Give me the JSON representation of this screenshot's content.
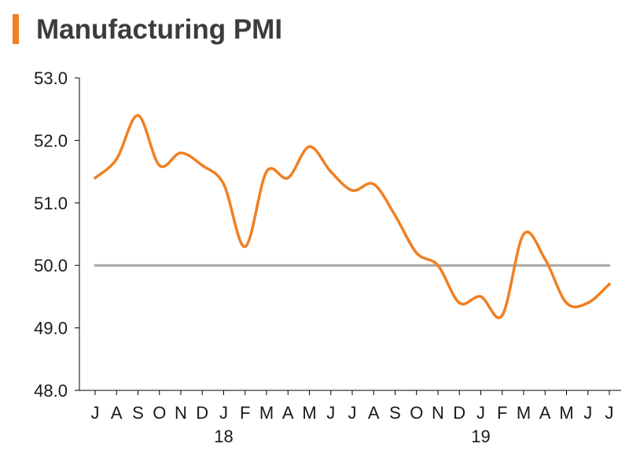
{
  "colors": {
    "accent": "#F07F22",
    "series": "#F07F22",
    "reference": "#A6A6A6",
    "axis": "#000000",
    "title_text": "#3C3C3C"
  },
  "chart_data": {
    "type": "line",
    "title": "Manufacturing PMI",
    "xlabel": "",
    "ylabel": "",
    "ylim": [
      48.0,
      53.0
    ],
    "yticks": [
      "53.0",
      "52.0",
      "51.0",
      "50.0",
      "49.0",
      "48.0"
    ],
    "reference_line": 50.0,
    "grid": false,
    "categories": [
      "J",
      "A",
      "S",
      "O",
      "N",
      "D",
      "J",
      "F",
      "M",
      "A",
      "M",
      "J",
      "J",
      "A",
      "S",
      "O",
      "N",
      "D",
      "J",
      "F",
      "M",
      "A",
      "M",
      "J",
      "J"
    ],
    "year_labels": [
      {
        "label": "18",
        "index": 6
      },
      {
        "label": "19",
        "index": 18
      }
    ],
    "series": [
      {
        "name": "Manufacturing PMI",
        "values": [
          51.4,
          51.7,
          52.4,
          51.6,
          51.8,
          51.6,
          51.3,
          50.3,
          51.5,
          51.4,
          51.9,
          51.5,
          51.2,
          51.3,
          50.8,
          50.2,
          50.0,
          49.4,
          49.5,
          49.2,
          50.5,
          50.1,
          49.4,
          49.4,
          49.7
        ]
      }
    ]
  }
}
